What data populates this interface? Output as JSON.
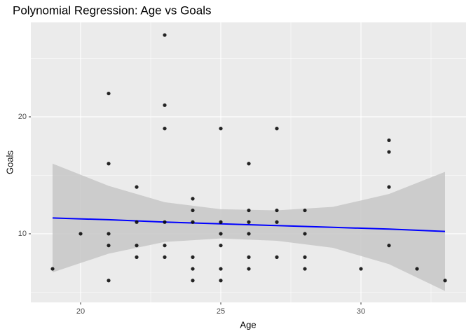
{
  "chart_data": {
    "type": "scatter",
    "title": "Polynomial Regression: Age vs Goals",
    "x_label": "Age",
    "y_label": "Goals",
    "x": [
      19,
      20,
      21,
      21,
      21,
      21,
      21,
      22,
      22,
      22,
      22,
      23,
      23,
      23,
      23,
      23,
      23,
      24,
      24,
      24,
      24,
      24,
      24,
      25,
      25,
      25,
      25,
      25,
      25,
      26,
      26,
      26,
      26,
      26,
      26,
      27,
      27,
      27,
      27,
      28,
      28,
      28,
      28,
      30,
      31,
      31,
      31,
      31,
      32,
      33
    ],
    "y": [
      7,
      10,
      22,
      16,
      10,
      9,
      6,
      14,
      11,
      9,
      8,
      27,
      21,
      19,
      11,
      9,
      8,
      13,
      12,
      11,
      8,
      7,
      6,
      19,
      11,
      10,
      9,
      7,
      6,
      16,
      12,
      11,
      10,
      8,
      7,
      19,
      12,
      11,
      8,
      12,
      10,
      8,
      7,
      7,
      18,
      17,
      14,
      9,
      7,
      6
    ],
    "color": "#000000",
    "fit": {
      "type": "line",
      "color": "#0000ff",
      "band_color": "#c9c9c9",
      "x": [
        19,
        21,
        23,
        25,
        27,
        29,
        31,
        33
      ],
      "y": [
        11.35,
        11.2,
        11.0,
        10.85,
        10.7,
        10.55,
        10.4,
        10.2
      ],
      "ymin": [
        6.7,
        8.3,
        9.3,
        9.6,
        9.4,
        8.8,
        7.4,
        5.1
      ],
      "ymax": [
        16.0,
        14.1,
        12.7,
        12.1,
        12.0,
        12.3,
        13.4,
        15.3
      ]
    },
    "xlim": [
      18.225,
      33.75
    ],
    "ylim": [
      4.13,
      28.08
    ],
    "xticks": [
      20,
      25,
      30
    ],
    "yticks": [
      10,
      20
    ],
    "xminor": [
      17.5,
      22.5,
      27.5,
      32.5
    ],
    "yminor": [
      5,
      15,
      25
    ],
    "grid": true
  }
}
